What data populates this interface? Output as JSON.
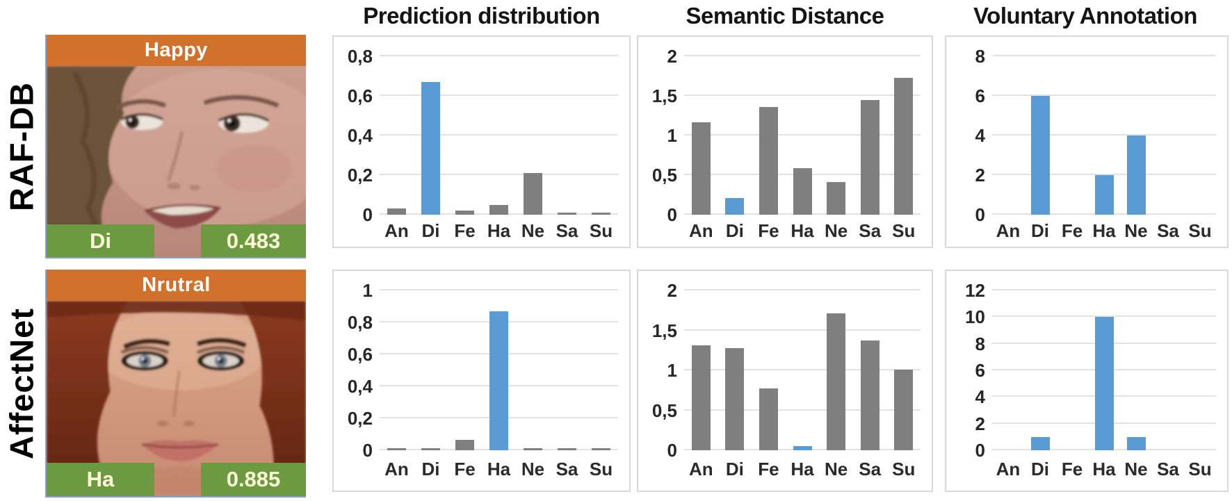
{
  "figure_type": "paper-figure with face images and bar charts",
  "column_titles": [
    "Prediction distribution",
    "Semantic Distance",
    "Voluntary Annotation"
  ],
  "categories": [
    "An",
    "Di",
    "Fe",
    "Ha",
    "Ne",
    "Sa",
    "Su"
  ],
  "colors": {
    "highlight_blue": "#5B9BD5",
    "bar_gray": "#7F7F7F",
    "banner_orange": "#D2712B",
    "band_green": "#6C9A40",
    "banner_text": "#FFFFFF",
    "band_text": "#FDFAD9",
    "gridline": "#E2E2E2",
    "chart_border": "#D8D8D8"
  },
  "rows": [
    {
      "dataset_label": "RAF-DB",
      "image": {
        "top_banner": "Happy",
        "bottom_left": "Di",
        "bottom_right": "0.483"
      }
    },
    {
      "dataset_label": "AffectNet",
      "image": {
        "top_banner": "Nrutral",
        "bottom_left": "Ha",
        "bottom_right": "0.885"
      }
    }
  ],
  "chart_data": [
    {
      "type": "bar",
      "row": "RAF-DB",
      "title": "Prediction distribution",
      "categories": [
        "An",
        "Di",
        "Fe",
        "Ha",
        "Ne",
        "Sa",
        "Su"
      ],
      "values": [
        0.03,
        0.67,
        0.02,
        0.05,
        0.21,
        0.01,
        0.01
      ],
      "highlight_index": 1,
      "all_blue": false,
      "ylim": [
        0,
        0.8
      ],
      "ytick_values": [
        0.8,
        0.6,
        0.4,
        0.2,
        0
      ],
      "ytick_labels": [
        "0,8",
        "0,6",
        "0,4",
        "0,2",
        "0"
      ],
      "grid": true,
      "legend": false
    },
    {
      "type": "bar",
      "row": "RAF-DB",
      "title": "Semantic Distance",
      "categories": [
        "An",
        "Di",
        "Fe",
        "Ha",
        "Ne",
        "Sa",
        "Su"
      ],
      "values": [
        1.17,
        0.21,
        1.36,
        0.59,
        0.41,
        1.45,
        1.73
      ],
      "highlight_index": 1,
      "all_blue": false,
      "ylim": [
        0,
        2
      ],
      "ytick_values": [
        2,
        1.5,
        1,
        0.5,
        0
      ],
      "ytick_labels": [
        "2",
        "1,5",
        "1",
        "0,5",
        "0"
      ],
      "grid": true,
      "legend": false
    },
    {
      "type": "bar",
      "row": "RAF-DB",
      "title": "Voluntary Annotation",
      "categories": [
        "An",
        "Di",
        "Fe",
        "Ha",
        "Ne",
        "Sa",
        "Su"
      ],
      "values": [
        0,
        6,
        0,
        2,
        4,
        0,
        0
      ],
      "highlight_index": null,
      "all_blue": true,
      "ylim": [
        0,
        8
      ],
      "ytick_values": [
        8,
        6,
        4,
        2,
        0
      ],
      "ytick_labels": [
        "8",
        "6",
        "4",
        "2",
        "0"
      ],
      "grid": true,
      "legend": false
    },
    {
      "type": "bar",
      "row": "AffectNet",
      "title": "Prediction distribution",
      "categories": [
        "An",
        "Di",
        "Fe",
        "Ha",
        "Ne",
        "Sa",
        "Su"
      ],
      "values": [
        0.005,
        0.01,
        0.065,
        0.87,
        0.005,
        0.005,
        0.015
      ],
      "highlight_index": 3,
      "all_blue": false,
      "ylim": [
        0,
        1
      ],
      "ytick_values": [
        1,
        0.8,
        0.6,
        0.4,
        0.2,
        0
      ],
      "ytick_labels": [
        "1",
        "0,8",
        "0,6",
        "0,4",
        "0,2",
        "0"
      ],
      "grid": true,
      "legend": false
    },
    {
      "type": "bar",
      "row": "AffectNet",
      "title": "Semantic Distance",
      "categories": [
        "An",
        "Di",
        "Fe",
        "Ha",
        "Ne",
        "Sa",
        "Su"
      ],
      "values": [
        1.31,
        1.28,
        0.77,
        0.05,
        1.71,
        1.37,
        1.01
      ],
      "highlight_index": 3,
      "all_blue": false,
      "ylim": [
        0,
        2
      ],
      "ytick_values": [
        2,
        1.5,
        1,
        0.5,
        0
      ],
      "ytick_labels": [
        "2",
        "1,5",
        "1",
        "0,5",
        "0"
      ],
      "grid": true,
      "legend": false
    },
    {
      "type": "bar",
      "row": "AffectNet",
      "title": "Voluntary Annotation",
      "categories": [
        "An",
        "Di",
        "Fe",
        "Ha",
        "Ne",
        "Sa",
        "Su"
      ],
      "values": [
        0,
        1,
        0,
        10,
        1,
        0,
        0
      ],
      "highlight_index": null,
      "all_blue": true,
      "ylim": [
        0,
        12
      ],
      "ytick_values": [
        12,
        10,
        8,
        6,
        4,
        2,
        0
      ],
      "ytick_labels": [
        "12",
        "10",
        "8",
        "6",
        "4",
        "2",
        "0"
      ],
      "grid": true,
      "legend": false
    }
  ]
}
